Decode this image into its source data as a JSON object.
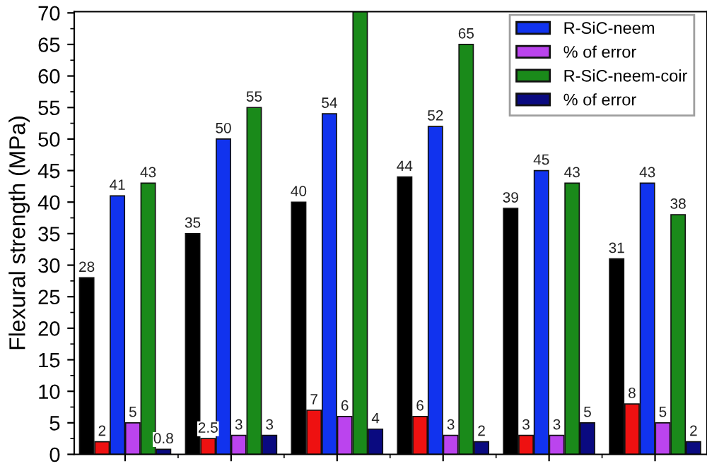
{
  "chart_data": {
    "type": "bar",
    "ylabel": "Flexural strength (MPa)",
    "categories": [
      null,
      null,
      null,
      null,
      null,
      null
    ],
    "series": [
      {
        "color": "#000000",
        "values": [
          28,
          35,
          40,
          44,
          39,
          31
        ],
        "value_labels": [
          "28",
          "35",
          "40",
          "44",
          "39",
          "31"
        ]
      },
      {
        "color": "#ee1111",
        "values": [
          2,
          2.5,
          7,
          6,
          3,
          8
        ],
        "value_labels": [
          "2",
          "2.5",
          "7",
          "6",
          "3",
          "8"
        ]
      },
      {
        "name": "R-SiC-neem",
        "color": "#1133ee",
        "values": [
          41,
          50,
          54,
          52,
          45,
          43
        ],
        "value_labels": [
          "41",
          "50",
          "54",
          "52",
          "45",
          "43"
        ]
      },
      {
        "name": "% of error",
        "color": "#bb44ee",
        "values": [
          5,
          3,
          6,
          3,
          3,
          5
        ],
        "value_labels": [
          "5",
          "3",
          "6",
          "3",
          "3",
          "5"
        ]
      },
      {
        "name": "R-SiC-neem-coir",
        "color": "#1a8a1a",
        "values": [
          43,
          55,
          70.2,
          65,
          43,
          38
        ],
        "value_labels": [
          "43",
          "55",
          null,
          "65",
          "43",
          "38"
        ]
      },
      {
        "name": "% of error",
        "color": "#0a0a80",
        "values": [
          0.8,
          3,
          4,
          2,
          5,
          2
        ],
        "value_labels": [
          "0.8",
          "3",
          "4",
          "2",
          "5",
          "2"
        ]
      }
    ],
    "ylim": [
      0,
      70.2
    ],
    "yticks": [
      0,
      5,
      10,
      15,
      20,
      25,
      30,
      35,
      40,
      45,
      50,
      55,
      60,
      65,
      70
    ],
    "tick_labels": "y",
    "legend": "top right",
    "grid": false
  }
}
